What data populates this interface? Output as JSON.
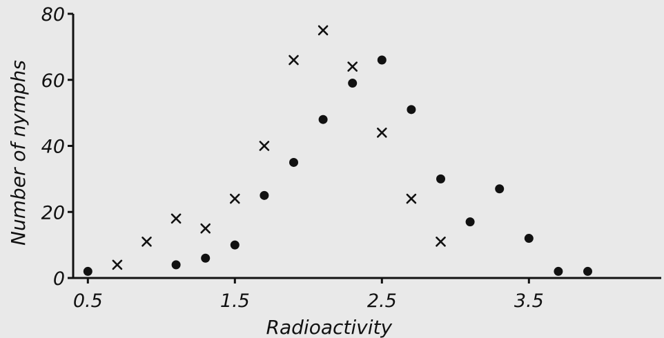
{
  "chart_data": {
    "type": "scatter",
    "title": "",
    "xlabel": "Radioactivity",
    "ylabel": "Number of nymphs",
    "xlim": [
      0.4,
      4.4
    ],
    "ylim": [
      0,
      80
    ],
    "x_ticks": [
      "0.5",
      "1.5",
      "2.5",
      "3.5"
    ],
    "y_ticks": [
      "0",
      "20",
      "40",
      "60",
      "80"
    ],
    "grid": false,
    "series": [
      {
        "marker": "cross",
        "points": [
          {
            "x": 0.7,
            "y": 4
          },
          {
            "x": 0.9,
            "y": 11
          },
          {
            "x": 1.1,
            "y": 18
          },
          {
            "x": 1.3,
            "y": 15
          },
          {
            "x": 1.5,
            "y": 24
          },
          {
            "x": 1.7,
            "y": 40
          },
          {
            "x": 1.9,
            "y": 66
          },
          {
            "x": 2.1,
            "y": 75
          },
          {
            "x": 2.3,
            "y": 64
          },
          {
            "x": 2.5,
            "y": 44
          },
          {
            "x": 2.7,
            "y": 24
          },
          {
            "x": 2.9,
            "y": 11
          }
        ]
      },
      {
        "marker": "dot",
        "points": [
          {
            "x": 0.5,
            "y": 2
          },
          {
            "x": 1.1,
            "y": 4
          },
          {
            "x": 1.3,
            "y": 6
          },
          {
            "x": 1.5,
            "y": 10
          },
          {
            "x": 1.7,
            "y": 25
          },
          {
            "x": 1.9,
            "y": 35
          },
          {
            "x": 2.1,
            "y": 48
          },
          {
            "x": 2.3,
            "y": 59
          },
          {
            "x": 2.5,
            "y": 66
          },
          {
            "x": 2.7,
            "y": 51
          },
          {
            "x": 2.9,
            "y": 30
          },
          {
            "x": 3.1,
            "y": 17
          },
          {
            "x": 3.3,
            "y": 27
          },
          {
            "x": 3.5,
            "y": 12
          },
          {
            "x": 3.7,
            "y": 2
          },
          {
            "x": 3.9,
            "y": 2
          }
        ]
      }
    ],
    "colors": {
      "ink": "#111111",
      "background": "#e9e9e9"
    }
  }
}
